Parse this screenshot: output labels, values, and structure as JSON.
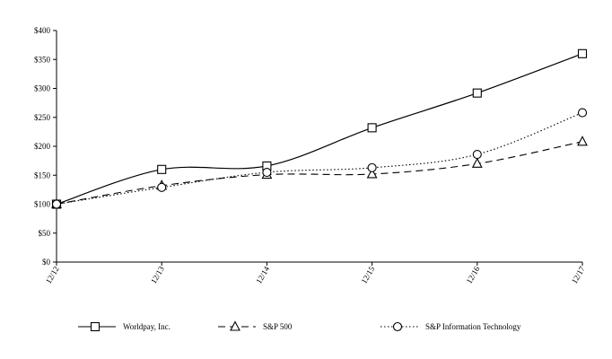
{
  "chart_data": {
    "type": "line",
    "title": "",
    "xlabel": "",
    "ylabel": "",
    "categories": [
      "12/12",
      "12/13",
      "12/14",
      "12/15",
      "12/16",
      "12/17"
    ],
    "ylim": [
      0,
      400
    ],
    "yticks": [
      0,
      50,
      100,
      150,
      200,
      250,
      300,
      350,
      400
    ],
    "ytick_labels": [
      "$0",
      "$50",
      "$100",
      "$150",
      "$200",
      "$250",
      "$300",
      "$350",
      "$400"
    ],
    "grid": false,
    "legend_position": "bottom",
    "series": [
      {
        "name": "Worldpay, Inc.",
        "values": [
          100,
          160,
          166,
          232,
          292,
          360
        ],
        "marker": "square",
        "line_style": "solid"
      },
      {
        "name": "S&P 500",
        "values": [
          100,
          132,
          151,
          152,
          170,
          208
        ],
        "marker": "triangle",
        "line_style": "dashed"
      },
      {
        "name": "S&P Information Technology",
        "values": [
          100,
          129,
          155,
          163,
          186,
          258
        ],
        "marker": "circle",
        "line_style": "dotted"
      }
    ]
  }
}
